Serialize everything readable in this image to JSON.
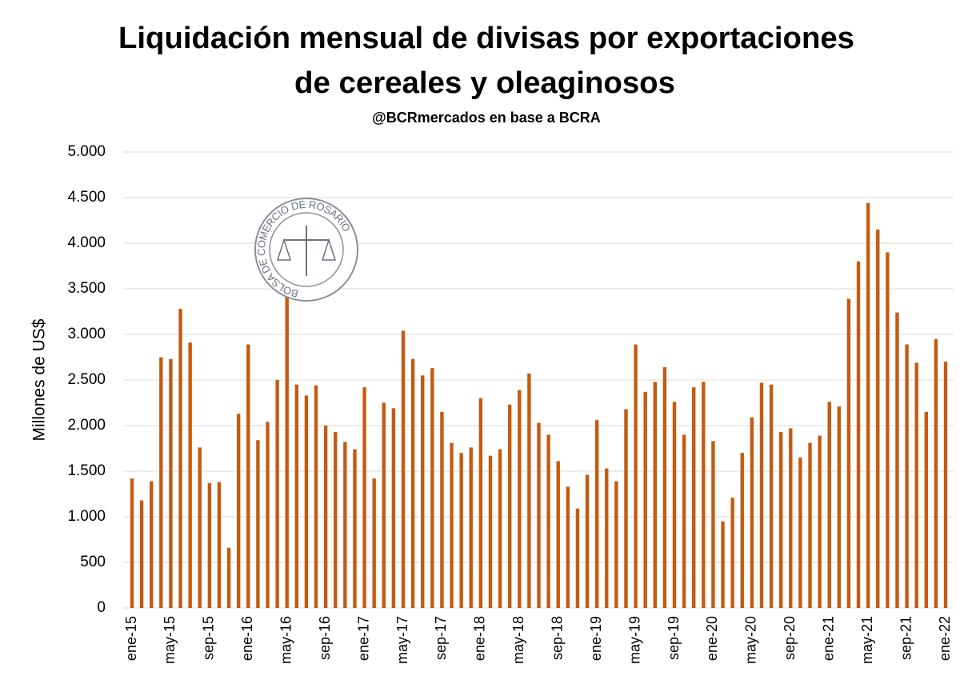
{
  "chart_data": {
    "type": "bar",
    "title": [
      "Liquidación mensual de divisas por exportaciones",
      "de cereales y oleaginosos"
    ],
    "subtitle": "@BCRmercados en base a BCRA",
    "ylabel": "Millones de US$",
    "logo_text": "BOLSA DE COMERCIO DE ROSARIO",
    "color": "#c55a11",
    "grid": true,
    "ylim": [
      0,
      5000
    ],
    "yticks": [
      0,
      500,
      {
        "value": 1000,
        "label": "1.000"
      },
      {
        "value": 1500,
        "label": "1.500"
      },
      {
        "value": 2000,
        "label": "2.000"
      },
      {
        "value": 2500,
        "label": "2.500"
      },
      {
        "value": 3000,
        "label": "3.000"
      },
      {
        "value": 3500,
        "label": "3.500"
      },
      {
        "value": 4000,
        "label": "4.000"
      },
      {
        "value": 4500,
        "label": "4.500"
      },
      {
        "value": 5000,
        "label": "5.000"
      }
    ],
    "categories": [
      "ene-15",
      null,
      null,
      null,
      "may-15",
      null,
      null,
      null,
      "sep-15",
      null,
      null,
      null,
      "ene-16",
      null,
      null,
      null,
      "may-16",
      null,
      null,
      null,
      "sep-16",
      null,
      null,
      null,
      "ene-17",
      null,
      null,
      null,
      "may-17",
      null,
      null,
      null,
      "sep-17",
      null,
      null,
      null,
      "ene-18",
      null,
      null,
      null,
      "may-18",
      null,
      null,
      null,
      "sep-18",
      null,
      null,
      null,
      "ene-19",
      null,
      null,
      null,
      "may-19",
      null,
      null,
      null,
      "sep-19",
      null,
      null,
      null,
      "ene-20",
      null,
      null,
      null,
      "may-20",
      null,
      null,
      null,
      "sep-20",
      null,
      null,
      null,
      "ene-21",
      null,
      null,
      null,
      "may-21",
      null,
      null,
      null,
      "sep-21",
      null,
      null,
      null,
      "ene-22"
    ],
    "values": [
      1420,
      1180,
      1390,
      2750,
      2730,
      3280,
      2910,
      1760,
      1370,
      1380,
      660,
      2130,
      2890,
      1840,
      2040,
      2500,
      3420,
      2450,
      2330,
      2440,
      2000,
      1930,
      1820,
      1740,
      2420,
      1420,
      2250,
      2190,
      3040,
      2730,
      2550,
      2630,
      2150,
      1810,
      1700,
      1760,
      2300,
      1670,
      1740,
      2230,
      2390,
      2570,
      2030,
      1900,
      1610,
      1330,
      1090,
      1460,
      2060,
      1530,
      1390,
      2180,
      2890,
      2370,
      2480,
      2640,
      2260,
      1900,
      2420,
      2480,
      1830,
      950,
      1210,
      1700,
      2090,
      2470,
      2450,
      1930,
      1970,
      1650,
      1810,
      1890,
      2260,
      2210,
      3390,
      3800,
      4440,
      4150,
      3900,
      3240,
      2890,
      2690,
      2150,
      2950,
      2700
    ]
  }
}
